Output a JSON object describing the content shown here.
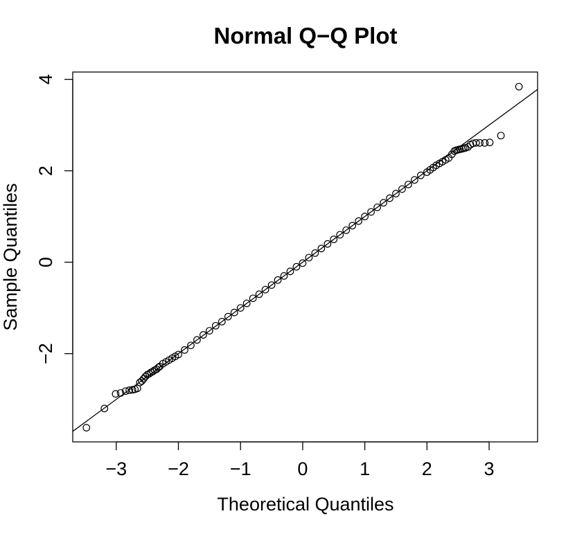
{
  "chart_data": {
    "type": "scatter",
    "title": "Normal Q−Q Plot",
    "xlabel": "Theoretical Quantiles",
    "ylabel": "Sample Quantiles",
    "xlim": [
      -3.7,
      3.78
    ],
    "ylim": [
      -3.93,
      4.16
    ],
    "x_ticks": [
      -3,
      -2,
      -1,
      0,
      1,
      2,
      3
    ],
    "x_tick_labels": [
      "−3",
      "−2",
      "−1",
      "0",
      "1",
      "2",
      "3"
    ],
    "y_ticks": [
      -2,
      0,
      2,
      4
    ],
    "y_tick_labels": [
      "−2",
      "0",
      "2",
      "4"
    ],
    "grid": false,
    "reference_line": {
      "intercept": 0.0,
      "slope": 1.0
    },
    "series": [
      {
        "x": [
          -3.48,
          -3.19,
          -3.01,
          -2.93,
          -2.85,
          -2.79,
          -2.74,
          -2.7,
          -2.66,
          -2.62,
          -2.59,
          -2.56,
          -2.53,
          -2.5,
          -2.47,
          -2.44,
          -2.41,
          -2.38,
          -2.35,
          -2.32,
          -2.3,
          -2.25,
          -2.2,
          -2.15,
          -2.1,
          -2.05,
          -2.0,
          -1.9,
          -1.8,
          -1.7,
          -1.6,
          -1.5,
          -1.4,
          -1.3,
          -1.2,
          -1.1,
          -1.0,
          -0.9,
          -0.8,
          -0.7,
          -0.6,
          -0.5,
          -0.4,
          -0.3,
          -0.2,
          -0.1,
          0.0,
          0.1,
          0.2,
          0.3,
          0.4,
          0.5,
          0.6,
          0.7,
          0.8,
          0.9,
          1.0,
          1.1,
          1.2,
          1.3,
          1.4,
          1.5,
          1.6,
          1.7,
          1.8,
          1.9,
          2.0,
          2.05,
          2.1,
          2.15,
          2.2,
          2.25,
          2.3,
          2.35,
          2.4,
          2.44,
          2.47,
          2.5,
          2.53,
          2.56,
          2.59,
          2.62,
          2.66,
          2.7,
          2.74,
          2.79,
          2.85,
          2.93,
          3.01,
          3.19,
          3.48
        ],
        "y": [
          -3.62,
          -3.2,
          -2.88,
          -2.86,
          -2.82,
          -2.8,
          -2.79,
          -2.78,
          -2.76,
          -2.63,
          -2.6,
          -2.55,
          -2.5,
          -2.46,
          -2.44,
          -2.41,
          -2.39,
          -2.36,
          -2.34,
          -2.3,
          -2.28,
          -2.22,
          -2.18,
          -2.14,
          -2.1,
          -2.06,
          -2.02,
          -1.92,
          -1.82,
          -1.7,
          -1.59,
          -1.5,
          -1.39,
          -1.3,
          -1.19,
          -1.1,
          -1.0,
          -0.9,
          -0.79,
          -0.7,
          -0.6,
          -0.5,
          -0.39,
          -0.3,
          -0.2,
          -0.1,
          -0.02,
          0.1,
          0.2,
          0.3,
          0.4,
          0.5,
          0.6,
          0.7,
          0.8,
          0.9,
          1.0,
          1.1,
          1.2,
          1.3,
          1.4,
          1.5,
          1.6,
          1.7,
          1.8,
          1.9,
          1.97,
          2.02,
          2.07,
          2.12,
          2.16,
          2.2,
          2.24,
          2.28,
          2.36,
          2.43,
          2.45,
          2.46,
          2.47,
          2.48,
          2.49,
          2.5,
          2.52,
          2.57,
          2.6,
          2.61,
          2.61,
          2.61,
          2.62,
          2.77,
          3.84
        ]
      }
    ]
  }
}
